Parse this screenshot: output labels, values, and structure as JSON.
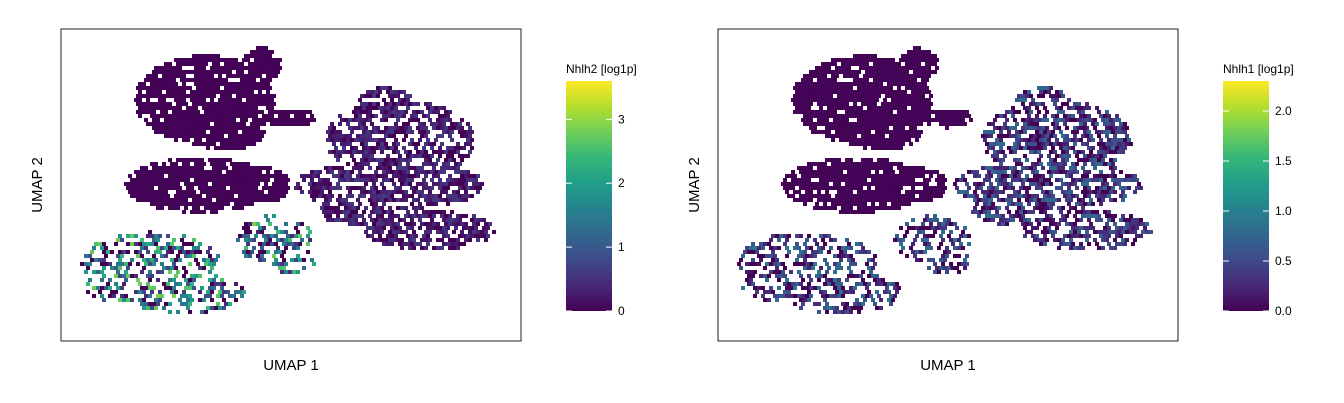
{
  "viridis": [
    "#440154",
    "#482878",
    "#3e4a89",
    "#31688e",
    "#26828e",
    "#1f9e89",
    "#35b779",
    "#6ece58",
    "#b5de2b",
    "#fde725"
  ],
  "chart_data": [
    {
      "type": "heatmap",
      "subtype": "hexbin-umap",
      "title": "",
      "xlabel": "UMAP 1",
      "ylabel": "UMAP 2",
      "colorbar_title": "Nhlh2 [log1p]",
      "colorbar_range": [
        0,
        3.6
      ],
      "colorbar_ticks": [
        0,
        1,
        2,
        3
      ],
      "colorbar_tick_labels": [
        "0",
        "1",
        "2",
        "3"
      ],
      "clusters": [
        {
          "label": "top-left",
          "mean": 0.02
        },
        {
          "label": "middle-left",
          "mean": 0.03
        },
        {
          "label": "right",
          "mean": 0.35
        },
        {
          "label": "bottom-left",
          "mean": 1.6
        }
      ]
    },
    {
      "type": "heatmap",
      "subtype": "hexbin-umap",
      "title": "",
      "xlabel": "UMAP 1",
      "ylabel": "UMAP 2",
      "colorbar_title": "Nhlh1 [log1p]",
      "colorbar_range": [
        0,
        2.3
      ],
      "colorbar_ticks": [
        0,
        0.5,
        1,
        1.5,
        2
      ],
      "colorbar_tick_labels": [
        "0.0",
        "0.5",
        "1.0",
        "1.5",
        "2.0"
      ],
      "clusters": [
        {
          "label": "top-left",
          "mean": 0.02
        },
        {
          "label": "middle-left",
          "mean": 0.02
        },
        {
          "label": "right",
          "mean": 0.45
        },
        {
          "label": "bottom-left",
          "mean": 0.5
        }
      ]
    }
  ]
}
